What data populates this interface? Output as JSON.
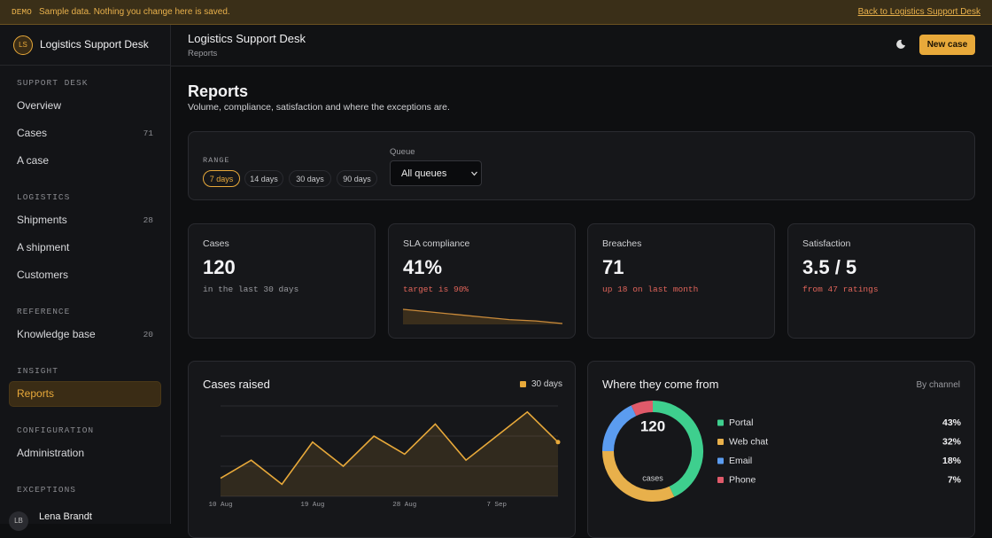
{
  "banner": {
    "tag": "DEMO",
    "text": "Sample data. Nothing you change here is saved.",
    "link": "Back to Logistics Support Desk"
  },
  "sidebar": {
    "logo": "LS",
    "app": "Logistics Support Desk",
    "sections": [
      {
        "title": "SUPPORT DESK",
        "items": [
          {
            "label": "Overview"
          },
          {
            "label": "Cases",
            "count": "71"
          },
          {
            "label": "A case"
          }
        ]
      },
      {
        "title": "LOGISTICS",
        "items": [
          {
            "label": "Shipments",
            "count": "28"
          },
          {
            "label": "A shipment"
          },
          {
            "label": "Customers"
          }
        ]
      },
      {
        "title": "REFERENCE",
        "items": [
          {
            "label": "Knowledge base",
            "count": "20"
          }
        ]
      },
      {
        "title": "INSIGHT",
        "items": [
          {
            "label": "Reports",
            "active": true
          }
        ]
      },
      {
        "title": "CONFIGURATION",
        "items": [
          {
            "label": "Administration"
          }
        ]
      },
      {
        "title": "EXCEPTIONS",
        "items": []
      }
    ],
    "user": {
      "initials": "LB",
      "name": "Lena Brandt"
    }
  },
  "header": {
    "title": "Logistics Support Desk",
    "crumb": "Reports",
    "button": "New case"
  },
  "page": {
    "title": "Reports",
    "subtitle": "Volume, compliance, satisfaction and where the exceptions are."
  },
  "filters": {
    "range_label": "RANGE",
    "ranges": [
      "7 days",
      "14 days",
      "30 days",
      "90 days"
    ],
    "selected_range": 0,
    "queue_label": "Queue",
    "queue": "All queues"
  },
  "kpis": [
    {
      "label": "Cases",
      "value": "120",
      "note": "in the last 30 days",
      "tone": "muted"
    },
    {
      "label": "SLA compliance",
      "value": "41%",
      "note": "target is 90%",
      "tone": "alert",
      "trend": [
        52,
        50,
        48,
        46,
        44,
        43,
        41
      ]
    },
    {
      "label": "Breaches",
      "value": "71",
      "note": "up 18 on last month",
      "tone": "alert"
    },
    {
      "label": "Satisfaction",
      "value": "3.5 / 5",
      "note": "from 47 ratings",
      "tone": "alert"
    }
  ],
  "cases_chart": {
    "type": "line",
    "title": "Cases raised",
    "categories": [
      "10 Aug",
      null,
      null,
      "19 Aug",
      null,
      null,
      "28 Aug",
      null,
      null,
      "7 Sep",
      null,
      null
    ],
    "series": [
      {
        "name": "30 days",
        "color": "#e8a93a",
        "values": [
          3,
          6,
          2,
          9,
          5,
          10,
          7,
          12,
          6,
          10,
          14,
          9
        ]
      }
    ],
    "ylim": [
      0,
      15
    ]
  },
  "channel_chart": {
    "type": "pie",
    "title": "Where they come from",
    "subtitle": "By channel",
    "center_value": "120",
    "center_label": "cases",
    "categories": [
      "Portal",
      "Web chat",
      "Email",
      "Phone"
    ],
    "values": [
      43,
      32,
      18,
      7
    ],
    "value_labels": [
      "43%",
      "32%",
      "18%",
      "7%"
    ],
    "colors": [
      "#3ecf8e",
      "#e8b04b",
      "#5b9cf0",
      "#e05a6a"
    ]
  }
}
